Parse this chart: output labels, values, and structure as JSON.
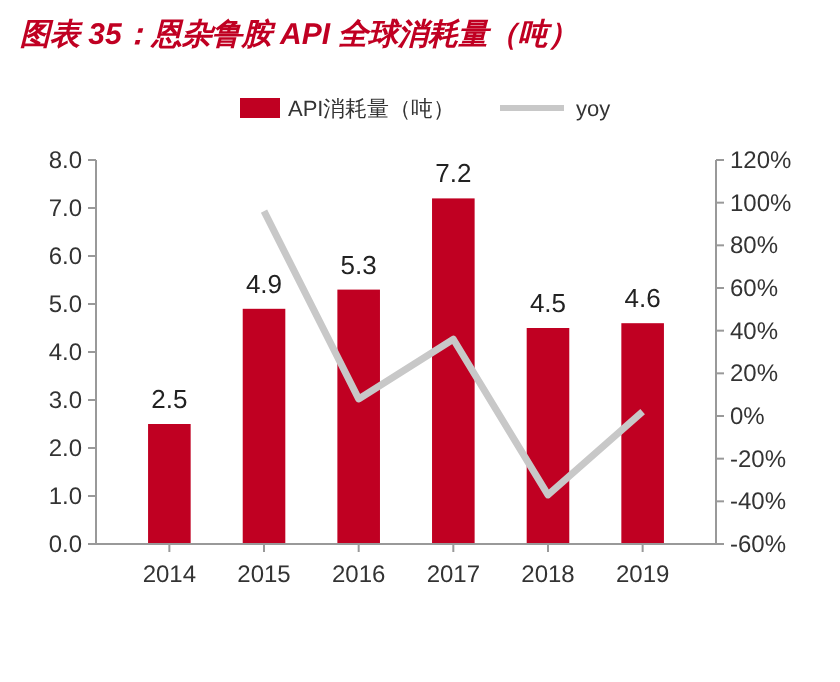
{
  "chart_data": {
    "type": "bar",
    "title": "图表 35：恩杂鲁胺 API 全球消耗量（吨）",
    "categories": [
      "2014",
      "2015",
      "2016",
      "2017",
      "2018",
      "2019"
    ],
    "series": [
      {
        "name": "API消耗量（吨）",
        "color": "#c00022",
        "values": [
          2.5,
          4.9,
          5.3,
          7.2,
          4.5,
          4.6
        ],
        "value_labels": [
          "2.5",
          "4.9",
          "5.3",
          "7.2",
          "4.5",
          "4.6"
        ]
      },
      {
        "name": "yoy",
        "type": "line",
        "axis": "y2",
        "color": "#c8c8c8",
        "values": [
          null,
          96,
          8,
          36,
          -37,
          2
        ]
      }
    ],
    "ylim": [
      0,
      8
    ],
    "yticks": [
      {
        "value": 0,
        "label": "0.0"
      },
      {
        "value": 1,
        "label": "1.0"
      },
      {
        "value": 2,
        "label": "2.0"
      },
      {
        "value": 3,
        "label": "3.0"
      },
      {
        "value": 4,
        "label": "4.0"
      },
      {
        "value": 5,
        "label": "5.0"
      },
      {
        "value": 6,
        "label": "6.0"
      },
      {
        "value": 7,
        "label": "7.0"
      },
      {
        "value": 8,
        "label": "8.0"
      }
    ],
    "y2lim": [
      -60,
      120
    ],
    "y2ticks": [
      {
        "value": -60,
        "label": "-60%"
      },
      {
        "value": -40,
        "label": "-40%"
      },
      {
        "value": -20,
        "label": "-20%"
      },
      {
        "value": 0,
        "label": "0%"
      },
      {
        "value": 20,
        "label": "20%"
      },
      {
        "value": 40,
        "label": "40%"
      },
      {
        "value": 60,
        "label": "60%"
      },
      {
        "value": 80,
        "label": "80%"
      },
      {
        "value": 100,
        "label": "100%"
      },
      {
        "value": 120,
        "label": "120%"
      }
    ],
    "legend": "top",
    "grid": false
  }
}
